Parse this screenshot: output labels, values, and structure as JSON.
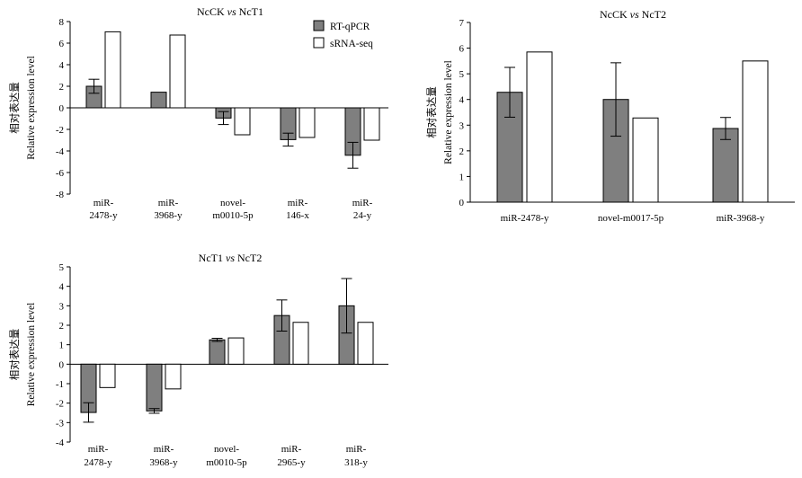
{
  "legend": {
    "rtqpcr": "RT-qPCR",
    "srnaseq": "sRNA-seq"
  },
  "colors": {
    "rtqpcr": "#7f7f7f",
    "srnaseq": "#ffffff",
    "axis": "#000000"
  },
  "chart_data": [
    {
      "type": "bar",
      "title_prefix": "NcCK",
      "title_vs": "vs",
      "title_suffix": "NcT1",
      "ylabel_cn": "相对表达量",
      "ylabel_en": "Relative expression level",
      "ylim": [
        -8,
        8
      ],
      "yticks": [
        -8,
        -6,
        -4,
        -2,
        0,
        2,
        4,
        6,
        8
      ],
      "categories": [
        [
          "miR-",
          "2478-y"
        ],
        [
          "miR-",
          "3968-y"
        ],
        [
          "novel-",
          "m0010-5p"
        ],
        [
          "miR-",
          "146-x"
        ],
        [
          "miR-",
          "24-y"
        ]
      ],
      "series": [
        {
          "name": "RT-qPCR",
          "values": [
            2.0,
            1.45,
            -0.95,
            -2.95,
            -4.4
          ],
          "errors": [
            0.65,
            0,
            0.6,
            0.6,
            1.2
          ]
        },
        {
          "name": "sRNA-seq",
          "values": [
            7.05,
            6.75,
            -2.5,
            -2.75,
            -3.0
          ]
        }
      ],
      "legend_position": "top-right"
    },
    {
      "type": "bar",
      "title_prefix": "NcCK",
      "title_vs": "vs",
      "title_suffix": "NcT2",
      "ylabel_cn": "相对表达量",
      "ylabel_en": "Relative expression level",
      "ylim": [
        0,
        7
      ],
      "yticks": [
        0,
        1,
        2,
        3,
        4,
        5,
        6,
        7
      ],
      "categories": [
        [
          "miR-2478-y"
        ],
        [
          "novel-m0017-5p"
        ],
        [
          "miR-3968-y"
        ]
      ],
      "series": [
        {
          "name": "RT-qPCR",
          "values": [
            4.28,
            4.0,
            2.87
          ],
          "errors": [
            0.97,
            1.43,
            0.43
          ]
        },
        {
          "name": "sRNA-seq",
          "values": [
            5.85,
            3.28,
            5.5
          ]
        }
      ]
    },
    {
      "type": "bar",
      "title_prefix": "NcT1",
      "title_vs": "vs",
      "title_suffix": "NcT2",
      "ylabel_cn": "相对表达量",
      "ylabel_en": "Relative expression level",
      "ylim": [
        -4,
        5
      ],
      "yticks": [
        -4,
        -3,
        -2,
        -1,
        0,
        1,
        2,
        3,
        4,
        5
      ],
      "categories": [
        [
          "miR-",
          "2478-y"
        ],
        [
          "miR-",
          "3968-y"
        ],
        [
          "novel-",
          "m0010-5p"
        ],
        [
          "miR-",
          "2965-y"
        ],
        [
          "miR-",
          "318-y"
        ]
      ],
      "series": [
        {
          "name": "RT-qPCR",
          "values": [
            -2.48,
            -2.4,
            1.25,
            2.5,
            3.0
          ],
          "errors": [
            0.5,
            0.12,
            0.08,
            0.8,
            1.4
          ]
        },
        {
          "name": "sRNA-seq",
          "values": [
            -1.2,
            -1.27,
            1.35,
            2.15,
            2.15
          ]
        }
      ]
    }
  ]
}
